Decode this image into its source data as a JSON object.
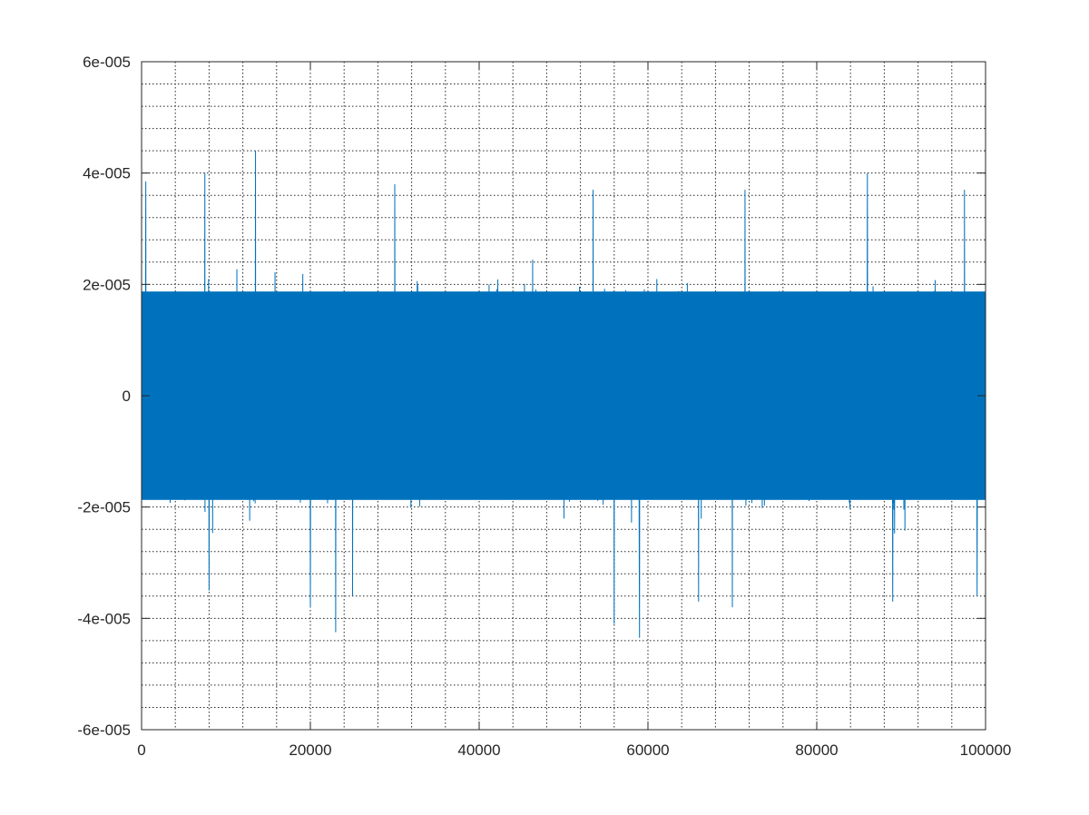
{
  "chart_data": {
    "type": "line",
    "title": "",
    "xlabel": "",
    "ylabel": "",
    "xlim": [
      0,
      100000
    ],
    "ylim": [
      -6e-05,
      6e-05
    ],
    "x_ticks": [
      0,
      20000,
      40000,
      60000,
      80000,
      100000
    ],
    "x_tick_labels": [
      "0",
      "20000",
      "40000",
      "60000",
      "80000",
      "100000"
    ],
    "y_ticks": [
      -6e-05,
      -4e-05,
      -2e-05,
      0,
      2e-05,
      4e-05,
      6e-05
    ],
    "y_tick_labels": [
      "-6e-005",
      "-4e-005",
      "-2e-005",
      "0",
      "2e-005",
      "4e-005",
      "6e-005"
    ],
    "x_minor_step": 4000,
    "y_minor_step": 4e-06,
    "grid": true,
    "grid_style": "dotted",
    "legend": "none",
    "series": [
      {
        "color": "#0072bd",
        "n_points": 100000,
        "typical_band": [
          -2.4e-05,
          2.4e-05
        ],
        "extremes": [
          {
            "x": 500,
            "y": 3.85e-05
          },
          {
            "x": 7500,
            "y": 4e-05
          },
          {
            "x": 13500,
            "y": 4.4e-05
          },
          {
            "x": 30000,
            "y": 3.8e-05
          },
          {
            "x": 53500,
            "y": 3.7e-05
          },
          {
            "x": 71500,
            "y": 3.7e-05
          },
          {
            "x": 86000,
            "y": 4e-05
          },
          {
            "x": 97500,
            "y": 3.7e-05
          },
          {
            "x": 8000,
            "y": -3.5e-05
          },
          {
            "x": 20000,
            "y": -3.8e-05
          },
          {
            "x": 23000,
            "y": -4.25e-05
          },
          {
            "x": 25000,
            "y": -3.6e-05
          },
          {
            "x": 56000,
            "y": -4.1e-05
          },
          {
            "x": 59000,
            "y": -4.35e-05
          },
          {
            "x": 66000,
            "y": -3.7e-05
          },
          {
            "x": 70000,
            "y": -3.8e-05
          },
          {
            "x": 89000,
            "y": -3.7e-05
          },
          {
            "x": 99000,
            "y": -3.6e-05
          }
        ]
      }
    ]
  }
}
